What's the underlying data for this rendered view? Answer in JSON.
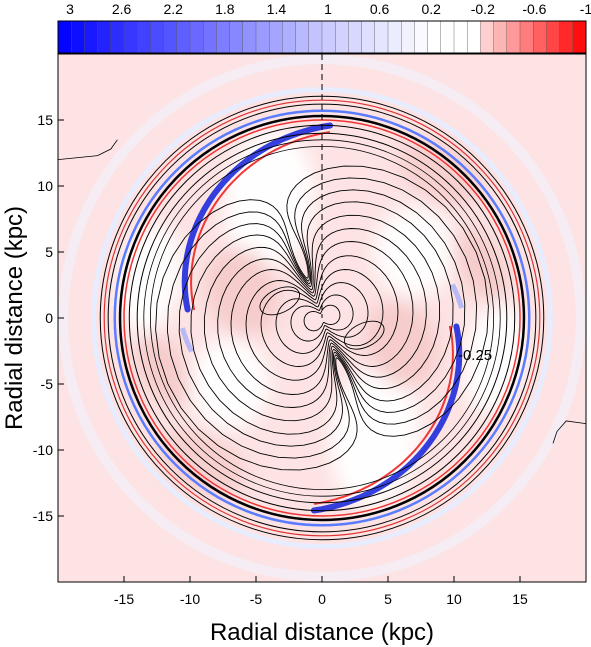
{
  "chart_data": {
    "type": "heatmap",
    "title": "",
    "xlabel": "Radial distance (kpc)",
    "ylabel": "Radial distance (kpc)",
    "xlim": [
      -20,
      20
    ],
    "ylim": [
      -20,
      20
    ],
    "xticks": [
      -15,
      -10,
      -5,
      0,
      5,
      10,
      15
    ],
    "yticks": [
      -15,
      -10,
      -5,
      0,
      5,
      10,
      15
    ],
    "colorbar": {
      "position": "top",
      "range": [
        3,
        -1
      ],
      "tick_labels": [
        "3",
        "2.6",
        "2.2",
        "1.8",
        "1.4",
        "1",
        "0.6",
        "0.2",
        "-0.2",
        "-0.6",
        "-1"
      ],
      "colors": {
        "high": "#0000ee",
        "mid": "#ffffff",
        "low": "#ee0000"
      }
    },
    "annotation": {
      "text": "-0.25",
      "x": 10.3,
      "y": -3.2
    },
    "features": {
      "spiral_arms": 2,
      "ring_radii_kpc": [
        14.0,
        15.2,
        16.8
      ],
      "dashed_line_x": 0
    }
  }
}
